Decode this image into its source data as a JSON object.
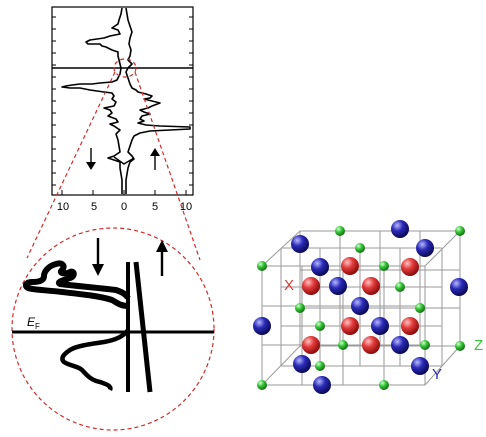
{
  "dos_panel": {
    "x_tick_labels": [
      "10",
      "5",
      "0",
      "5",
      "10"
    ],
    "spin_down_glyph": "↓",
    "spin_up_glyph": "↑"
  },
  "zoom_inset": {
    "fermi_label": "E",
    "fermi_subscript": "F",
    "spin_down_glyph": "↓",
    "spin_up_glyph": "↑"
  },
  "lattice": {
    "label_x": "X",
    "label_y": "Y",
    "label_z": "Z",
    "colors": {
      "x_site": "#e23a3a",
      "y_site": "#2a2ab8",
      "z_site": "#37c837",
      "frame": "#9a9a9a"
    }
  },
  "colors": {
    "zoom_outline": "#d42a2a",
    "curve": "#000000"
  }
}
